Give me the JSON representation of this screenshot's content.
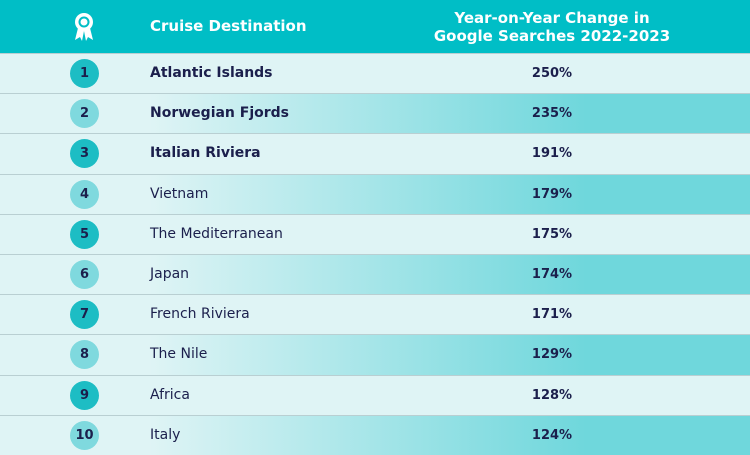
{
  "header": {
    "destination": "Cruise Destination",
    "change": [
      "Year-on-Year Change in",
      "Google Searches 2022-2023"
    ]
  },
  "table": {
    "rows": [
      [
        "1",
        "Atlantic Islands",
        "250%"
      ],
      [
        "2",
        "Norwegian Fjords",
        "235%"
      ],
      [
        "3",
        "Italian Riviera",
        "191%"
      ],
      [
        "4",
        "Vietnam",
        "179%"
      ],
      [
        "5",
        "The Mediterranean",
        "175%"
      ],
      [
        "6",
        "Japan",
        "174%"
      ],
      [
        "7",
        "French Riviera",
        "171%"
      ],
      [
        "8",
        "The Nile",
        "129%"
      ],
      [
        "9",
        "Africa",
        "128%"
      ],
      [
        "10",
        "Italy",
        "124%"
      ]
    ]
  }
}
